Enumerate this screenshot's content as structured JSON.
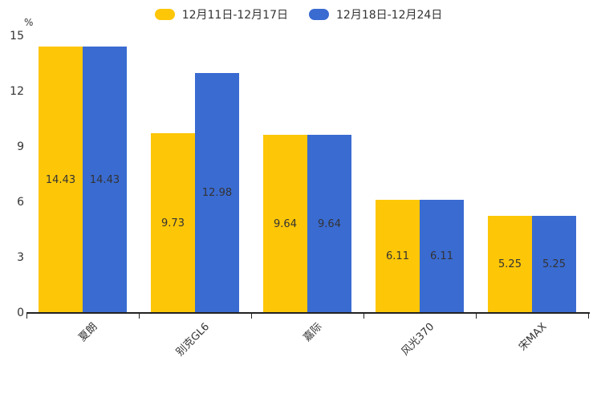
{
  "chart_data": {
    "type": "bar",
    "title": "",
    "categories": [
      "夏朗",
      "别克GL6",
      "嘉际",
      "风光370",
      "宋MAX"
    ],
    "series": [
      {
        "name": "12月11日-12月17日",
        "color": "#FDC607",
        "values": [
          14.43,
          9.73,
          9.64,
          6.11,
          5.25
        ]
      },
      {
        "name": "12月18日-12月24日",
        "color": "#3A6BD1",
        "values": [
          14.43,
          12.98,
          9.64,
          6.11,
          5.25
        ]
      }
    ],
    "xlabel": "",
    "ylabel": "%",
    "ylim": [
      0,
      15
    ],
    "yticks": [
      0,
      3,
      6,
      9,
      12,
      15
    ],
    "grid": false,
    "legend_position": "top-center",
    "value_labels": "inside-center",
    "value_label_color": "#333333",
    "axis_color": "#222222"
  }
}
